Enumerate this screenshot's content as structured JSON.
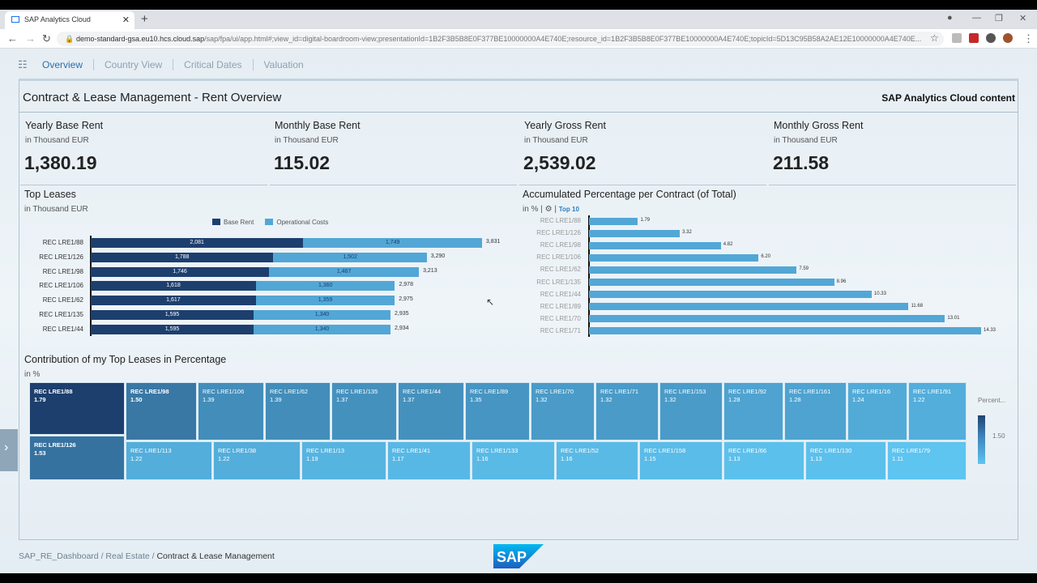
{
  "browser": {
    "tab_title": "SAP Analytics Cloud",
    "url_host": "demo-standard-gsa.eu10.hcs.cloud.sap",
    "url_path": "/sap/fpa/ui/app.html#;view_id=digital-boardroom-view;presentationId=1B2F3B5B8E0F377BE10000000A4E740E;resource_id=1B2F3B5B8E0F377BE10000000A4E740E;topicId=5D13C95B58A2AE12E10000000A4E740E..."
  },
  "nav": {
    "items": [
      "Overview",
      "Country View",
      "Critical Dates",
      "Valuation"
    ],
    "active": "Overview"
  },
  "header": {
    "title": "Contract & Lease Management - Rent Overview",
    "brand": "SAP Analytics Cloud content"
  },
  "kpis": [
    {
      "title": "Yearly Base Rent",
      "unit": "in Thousand EUR",
      "value": "1,380.19"
    },
    {
      "title": "Monthly Base Rent",
      "unit": "in Thousand EUR",
      "value": "115.02"
    },
    {
      "title": "Yearly Gross Rent",
      "unit": "in Thousand EUR",
      "value": "2,539.02"
    },
    {
      "title": "Monthly Gross Rent",
      "unit": "in Thousand EUR",
      "value": "211.58"
    }
  ],
  "top_leases": {
    "title": "Top Leases",
    "unit": "in Thousand EUR"
  },
  "accum": {
    "title": "Accumulated Percentage per Contract (of Total)",
    "unit": "in %",
    "filter": "Top 10"
  },
  "contrib": {
    "title": "Contribution of my Top Leases in Percentage",
    "unit": "in %",
    "legend_title": "Percent...",
    "legend_value": "1.50"
  },
  "chart_data": [
    {
      "type": "bar",
      "orientation": "horizontal",
      "stacked": true,
      "categories": [
        "REC LRE1/88",
        "REC LRE1/126",
        "REC LRE1/98",
        "REC LRE1/106",
        "REC LRE1/62",
        "REC LRE1/135",
        "REC LRE1/44"
      ],
      "series": [
        {
          "name": "Base Rent",
          "color": "#1d3f6e",
          "values": [
            2081,
            1788,
            1746,
            1618,
            1617,
            1595,
            1595
          ],
          "labels": [
            "2,081",
            "1,788",
            "1,746",
            "1,618",
            "1,617",
            "1,595",
            "1,595"
          ]
        },
        {
          "name": "Operational Costs",
          "color": "#52a7d6",
          "values": [
            1749,
            1502,
            1467,
            1360,
            1359,
            1340,
            1340
          ],
          "labels": [
            "1,749",
            "1,502",
            "1,467",
            "1,360",
            "1,359",
            "1,340",
            "1,340"
          ]
        }
      ],
      "totals": [
        "3,831",
        "3,290",
        "3,213",
        "2,978",
        "2,975",
        "2,935",
        "2,934"
      ],
      "legend": "top"
    },
    {
      "type": "bar",
      "orientation": "horizontal",
      "color": "#52a7d6",
      "categories": [
        "REC LRE1/88",
        "REC LRE1/126",
        "REC LRE1/98",
        "REC LRE1/106",
        "REC LRE1/62",
        "REC LRE1/135",
        "REC LRE1/44",
        "REC LRE1/89",
        "REC LRE1/70",
        "REC LRE1/71"
      ],
      "values": [
        1.79,
        3.32,
        4.82,
        6.2,
        7.59,
        8.96,
        10.33,
        11.68,
        13.01,
        14.33
      ],
      "labels": [
        "1.79",
        "3.32",
        "4.82",
        "6.20",
        "7.59",
        "8.96",
        "10.33",
        "11.68",
        "13.01",
        "14.33"
      ]
    },
    {
      "type": "heatmap",
      "subtype": "treemap",
      "color_low": "#5ec4f0",
      "color_high": "#1d3f6e",
      "tiles": [
        {
          "name": "REC LRE1/88",
          "value": "1.79"
        },
        {
          "name": "REC LRE1/126",
          "value": "1.53"
        },
        {
          "name": "REC LRE1/98",
          "value": "1.50"
        },
        {
          "name": "REC LRE1/106",
          "value": "1.39"
        },
        {
          "name": "REC LRE1/62",
          "value": "1.39"
        },
        {
          "name": "REC LRE1/135",
          "value": "1.37"
        },
        {
          "name": "REC LRE1/44",
          "value": "1.37"
        },
        {
          "name": "REC LRE1/89",
          "value": "1.35"
        },
        {
          "name": "REC LRE1/70",
          "value": "1.32"
        },
        {
          "name": "REC LRE1/71",
          "value": "1.32"
        },
        {
          "name": "REC LRE1/153",
          "value": "1.32"
        },
        {
          "name": "REC LRE1/92",
          "value": "1.28"
        },
        {
          "name": "REC LRE1/161",
          "value": "1.28"
        },
        {
          "name": "REC LRE1/16",
          "value": "1.24"
        },
        {
          "name": "REC LRE1/91",
          "value": "1.22"
        },
        {
          "name": "REC LRE1/113",
          "value": "1.22"
        },
        {
          "name": "REC LRE1/38",
          "value": "1.22"
        },
        {
          "name": "REC LRE1/13",
          "value": "1.19"
        },
        {
          "name": "REC LRE1/41",
          "value": "1.17"
        },
        {
          "name": "REC LRE1/133",
          "value": "1.16"
        },
        {
          "name": "REC LRE1/52",
          "value": "1.16"
        },
        {
          "name": "REC LRE1/158",
          "value": "1.15"
        },
        {
          "name": "REC LRE1/66",
          "value": "1.13"
        },
        {
          "name": "REC LRE1/130",
          "value": "1.13"
        },
        {
          "name": "REC LRE1/79",
          "value": "1.11"
        }
      ]
    }
  ],
  "breadcrumb": [
    "SAP_RE_Dashboard",
    "Real Estate",
    "Contract & Lease Management"
  ],
  "logo": "SAP"
}
